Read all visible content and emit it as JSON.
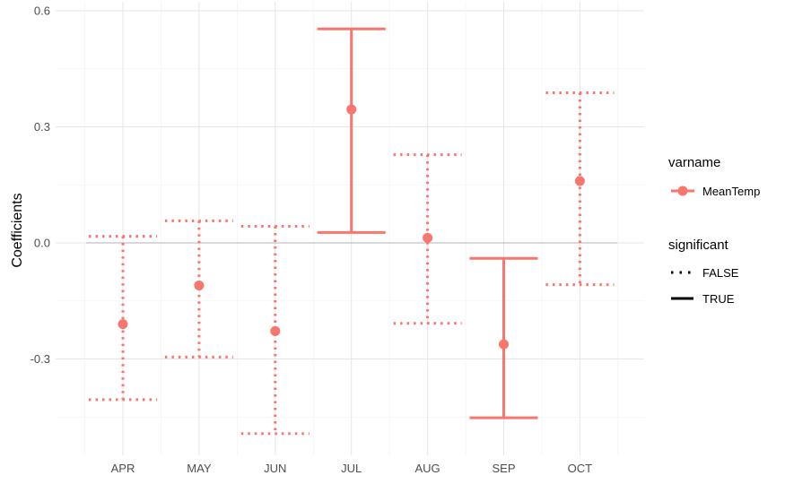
{
  "chart_data": {
    "type": "errorbar",
    "ylabel": "Coefficients",
    "xlabel": "",
    "title": "",
    "categories": [
      "APR",
      "MAY",
      "JUN",
      "JUL",
      "AUG",
      "SEP",
      "OCT"
    ],
    "yticks": [
      0.6,
      0.3,
      0.0,
      -0.3
    ],
    "ytick_labels": [
      "0.6",
      "0.3",
      "0.0",
      "-0.3"
    ],
    "ylim": [
      -0.545,
      0.6
    ],
    "series": [
      {
        "name": "MeanTemp",
        "color": "#F8766D",
        "points": [
          {
            "month": "APR",
            "estimate": -0.21,
            "lower": -0.405,
            "upper": 0.017,
            "significant": false
          },
          {
            "month": "MAY",
            "estimate": -0.11,
            "lower": -0.295,
            "upper": 0.057,
            "significant": false
          },
          {
            "month": "JUN",
            "estimate": -0.228,
            "lower": -0.493,
            "upper": 0.043,
            "significant": false
          },
          {
            "month": "JUL",
            "estimate": 0.345,
            "lower": 0.027,
            "upper": 0.553,
            "significant": true
          },
          {
            "month": "AUG",
            "estimate": 0.013,
            "lower": -0.208,
            "upper": 0.228,
            "significant": false
          },
          {
            "month": "SEP",
            "estimate": -0.262,
            "lower": -0.452,
            "upper": -0.04,
            "significant": true
          },
          {
            "month": "OCT",
            "estimate": 0.16,
            "lower": -0.108,
            "upper": 0.388,
            "significant": false
          }
        ]
      }
    ],
    "hline": 0,
    "grid": true,
    "legend": {
      "placement": "right",
      "groups": [
        {
          "title": "varname",
          "items": [
            {
              "label": "MeanTemp",
              "kind": "point-line"
            }
          ]
        },
        {
          "title": "significant",
          "items": [
            {
              "label": "FALSE",
              "kind": "dotted"
            },
            {
              "label": "TRUE",
              "kind": "solid"
            }
          ]
        }
      ]
    }
  }
}
